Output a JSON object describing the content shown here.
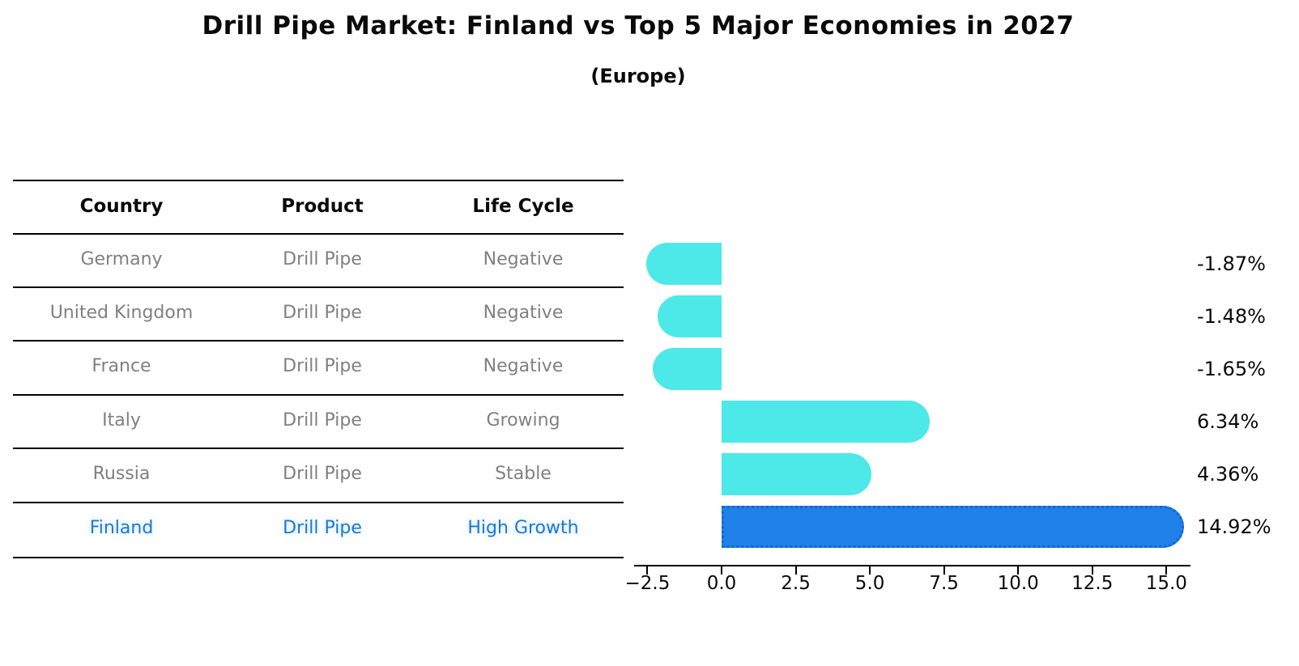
{
  "title": "Drill Pipe Market: Finland vs Top 5 Major Economies in 2027",
  "subtitle": "(Europe)",
  "table": {
    "headers": {
      "country": "Country",
      "product": "Product",
      "life_cycle": "Life Cycle"
    },
    "rows": [
      {
        "country": "Germany",
        "product": "Drill Pipe",
        "life_cycle": "Negative",
        "highlight": false
      },
      {
        "country": "United Kingdom",
        "product": "Drill Pipe",
        "life_cycle": "Negative",
        "highlight": false
      },
      {
        "country": "France",
        "product": "Drill Pipe",
        "life_cycle": "Negative",
        "highlight": false
      },
      {
        "country": "Italy",
        "product": "Drill Pipe",
        "life_cycle": "Growing",
        "highlight": false
      },
      {
        "country": "Russia",
        "product": "Drill Pipe",
        "life_cycle": "Stable",
        "highlight": false
      },
      {
        "country": "Finland",
        "product": "Drill Pipe",
        "life_cycle": "High Growth",
        "highlight": true
      }
    ]
  },
  "chart_data": {
    "type": "bar",
    "orientation": "horizontal",
    "title": "Drill Pipe Market: Finland vs Top 5 Major Economies in 2027",
    "subtitle": "(Europe)",
    "categories": [
      "Germany",
      "United Kingdom",
      "France",
      "Italy",
      "Russia",
      "Finland"
    ],
    "values": [
      -1.87,
      -1.48,
      -1.65,
      6.34,
      4.36,
      14.92
    ],
    "value_labels": [
      "-1.87%",
      "-1.48%",
      "-1.65%",
      "6.34%",
      "4.36%",
      "14.92%"
    ],
    "x_ticks": [
      "−2.5",
      "0.0",
      "2.5",
      "5.0",
      "7.5",
      "10.0",
      "12.5",
      "15.0"
    ],
    "x_tick_values": [
      -2.5,
      0,
      2.5,
      5,
      7.5,
      10,
      12.5,
      15
    ],
    "xlim": [
      -2.95,
      15.85
    ],
    "grid": false,
    "legend": "none",
    "colors": {
      "default_bar": "#4DE8E8",
      "highlight_bar": "#1E80E8",
      "highlight_bar_border": "#1865C8",
      "row_text": "#808080",
      "highlight_text": "#1E78D7",
      "axis_text": "#0a0a0a"
    }
  }
}
